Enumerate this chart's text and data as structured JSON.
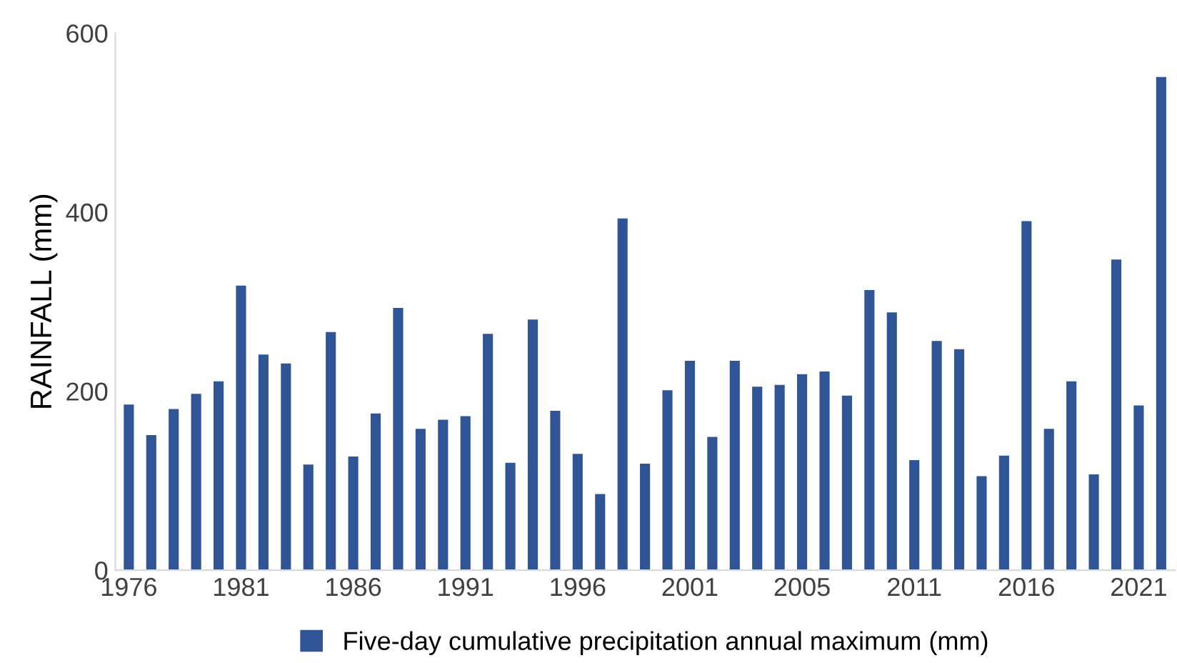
{
  "chart_data": {
    "type": "bar",
    "ylabel": "RAINFALL (mm)",
    "categories": [
      "1976",
      null,
      null,
      null,
      null,
      "1981",
      null,
      null,
      null,
      null,
      "1986",
      null,
      null,
      null,
      null,
      "1991",
      null,
      null,
      null,
      null,
      "1996",
      null,
      null,
      null,
      null,
      "2001",
      null,
      null,
      null,
      null,
      "2005",
      null,
      null,
      null,
      null,
      "2011",
      null,
      null,
      null,
      null,
      "2016",
      null,
      null,
      null,
      null,
      "2021",
      null
    ],
    "series": [
      {
        "name": "Five-day cumulative precipitation annual maximum (mm)",
        "color": "#2f5597",
        "values": [
          185,
          151,
          180,
          197,
          211,
          318,
          241,
          231,
          118,
          266,
          127,
          175,
          293,
          158,
          168,
          172,
          264,
          120,
          280,
          178,
          130,
          85,
          393,
          119,
          201,
          234,
          149,
          234,
          205,
          207,
          219,
          222,
          195,
          313,
          288,
          123,
          256,
          247,
          105,
          128,
          390,
          158,
          211,
          107,
          347,
          184,
          551
        ]
      }
    ],
    "ylim": [
      0,
      600
    ],
    "yticks": [
      0,
      200,
      400,
      600
    ],
    "grid": false,
    "legend": "bottom"
  }
}
